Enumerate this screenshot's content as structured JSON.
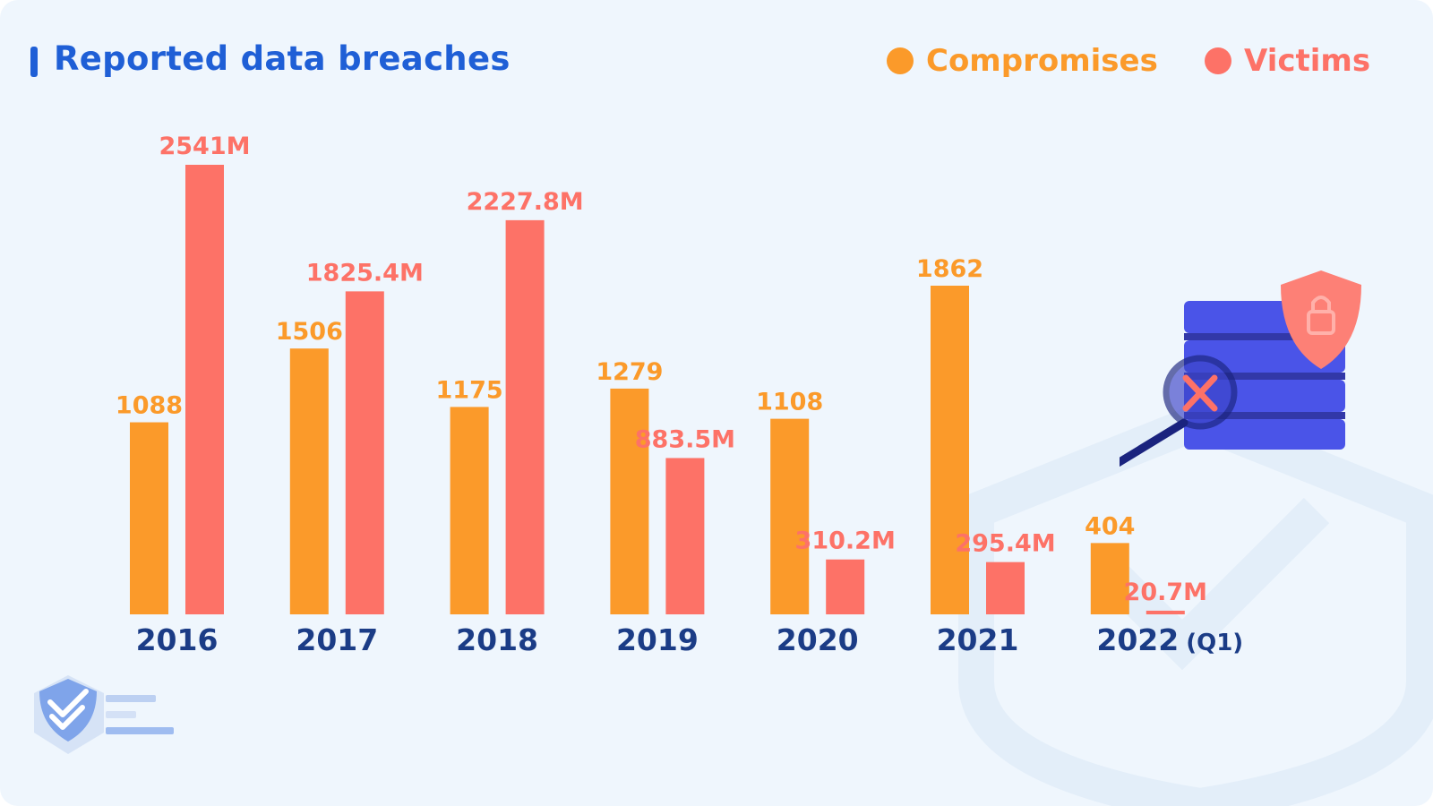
{
  "title": "Reported data breaches",
  "colors": {
    "compromises": "#fb9a2a",
    "victims": "#fd7267",
    "title": "#1f5fd6",
    "axis_text": "#1b3c86",
    "background": "#eff6fd"
  },
  "legend": {
    "compromises": "Compromises",
    "victims": "Victims"
  },
  "chart_data": {
    "type": "bar",
    "title": "Reported data breaches",
    "categories": [
      "2016",
      "2017",
      "2018",
      "2019",
      "2020",
      "2021",
      "2022"
    ],
    "category_suffixes": [
      "",
      "",
      "",
      "",
      "",
      "",
      "(Q1)"
    ],
    "series": [
      {
        "name": "Compromises",
        "values": [
          1088,
          1506,
          1175,
          1279,
          1108,
          1862,
          404
        ],
        "labels": [
          "1088",
          "1506",
          "1175",
          "1279",
          "1108",
          "1862",
          "404"
        ]
      },
      {
        "name": "Victims",
        "values": [
          2541,
          1825.4,
          2227.8,
          883.5,
          310.2,
          295.4,
          20.7
        ],
        "labels": [
          "2541M",
          "1825.4M",
          "2227.8M",
          "883.5M",
          "310.2M",
          "295.4M",
          "20.7M"
        ]
      }
    ],
    "grid": false,
    "legend_position": "top-right",
    "icons": [
      "database-icon",
      "shield-lock-icon",
      "magnifier-x-icon",
      "logo-shield-check-icon"
    ]
  }
}
